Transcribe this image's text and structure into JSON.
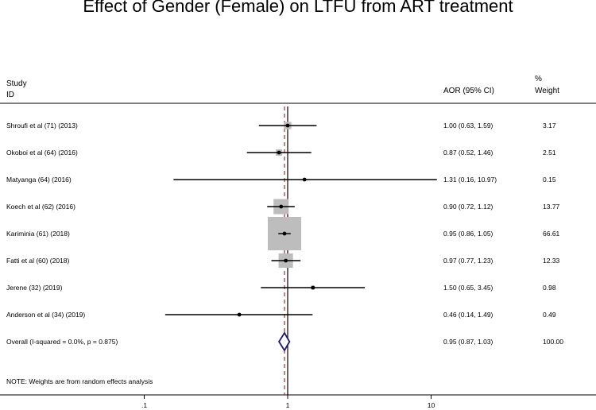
{
  "chart_data": {
    "type": "forest",
    "title": "Effect of Gender (Female) on LTFU from ART treatment",
    "columns": {
      "study_header_1": "Study",
      "study_header_2": "ID",
      "estimate_header": "AOR (95% CI)",
      "weight_header_1": "%",
      "weight_header_2": "Weight"
    },
    "scale": "log",
    "xlim": [
      0.1,
      100
    ],
    "x_ticks": [
      {
        "value": 0.1,
        "label": ".1"
      },
      {
        "value": 1,
        "label": "1"
      },
      {
        "value": 10,
        "label": "10"
      }
    ],
    "reference_line": 1,
    "studies": [
      {
        "label": "Shroufi et al (71) (2013)",
        "estimate": 1.0,
        "lower": 0.63,
        "upper": 1.59,
        "ci_text": "1.00 (0.63, 1.59)",
        "weight": 3.17,
        "weight_text": "3.17"
      },
      {
        "label": "Okoboi et al (64) (2016)",
        "estimate": 0.87,
        "lower": 0.52,
        "upper": 1.46,
        "ci_text": "0.87 (0.52, 1.46)",
        "weight": 2.51,
        "weight_text": "2.51"
      },
      {
        "label": "Matyanga (64) (2016)",
        "estimate": 1.31,
        "lower": 0.16,
        "upper": 10.97,
        "ci_text": "1.31 (0.16, 10.97)",
        "weight": 0.15,
        "weight_text": "0.15"
      },
      {
        "label": "Koech et al (62)  (2016)",
        "estimate": 0.9,
        "lower": 0.72,
        "upper": 1.12,
        "ci_text": "0.90 (0.72, 1.12)",
        "weight": 13.77,
        "weight_text": "13.77"
      },
      {
        "label": "Kariminia (61) (2018)",
        "estimate": 0.95,
        "lower": 0.86,
        "upper": 1.05,
        "ci_text": "0.95 (0.86, 1.05)",
        "weight": 66.61,
        "weight_text": "66.61"
      },
      {
        "label": "Fatti et al (60) (2018)",
        "estimate": 0.97,
        "lower": 0.77,
        "upper": 1.23,
        "ci_text": "0.97 (0.77, 1.23)",
        "weight": 12.33,
        "weight_text": "12.33"
      },
      {
        "label": "Jerene (32) (2019)",
        "estimate": 1.5,
        "lower": 0.65,
        "upper": 3.45,
        "ci_text": "1.50 (0.65, 3.45)",
        "weight": 0.98,
        "weight_text": "0.98"
      },
      {
        "label": "Anderson et al (34) (2019)",
        "estimate": 0.46,
        "lower": 0.14,
        "upper": 1.49,
        "ci_text": "0.46 (0.14, 1.49)",
        "weight": 0.49,
        "weight_text": "0.49"
      }
    ],
    "overall": {
      "label": "Overall  (I-squared = 0.0%, p = 0.875)",
      "estimate": 0.95,
      "lower": 0.87,
      "upper": 1.03,
      "ci_text": "0.95 (0.87, 1.03)",
      "weight_text": "100.00"
    },
    "note": "NOTE: Weights are from random effects analysis",
    "colors": {
      "box": "#bdbdbd",
      "line": "#000000",
      "diamond": "#1a1a6e",
      "overall_line": "#a0303a"
    }
  }
}
